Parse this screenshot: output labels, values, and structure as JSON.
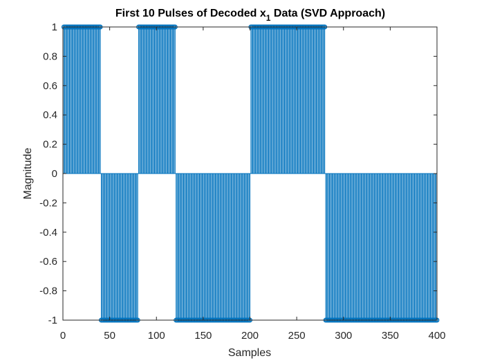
{
  "chart_data": {
    "type": "stem",
    "title": {
      "prefix": "First 10 Pulses of Decoded x",
      "subscript": "1",
      "suffix": " Data (SVD Approach)"
    },
    "xlabel": "Samples",
    "ylabel": "Magnitude",
    "xlim": [
      0,
      400
    ],
    "ylim": [
      -1,
      1
    ],
    "xticks": [
      0,
      50,
      100,
      150,
      200,
      250,
      300,
      350,
      400
    ],
    "yticks": [
      -1,
      -0.8,
      -0.6,
      -0.4,
      -0.2,
      0,
      0.2,
      0.4,
      0.6,
      0.8,
      1
    ],
    "xtick_labels": [
      "0",
      "50",
      "100",
      "150",
      "200",
      "250",
      "300",
      "350",
      "400"
    ],
    "ytick_labels": [
      "-1",
      "-0.8",
      "-0.6",
      "-0.4",
      "-0.2",
      "0",
      "0.2",
      "0.4",
      "0.6",
      "0.8",
      "1"
    ],
    "grid": false,
    "box": true,
    "color": "#0072BD",
    "marker": "circle-open",
    "samples_per_pulse": 40,
    "pulses": [
      1,
      -1,
      1,
      -1,
      -1,
      1,
      1,
      -1,
      -1,
      -1
    ],
    "series": [
      {
        "x_start": 1,
        "x_end": 400,
        "description_values": "each sample equals the amplitude of its pulse"
      }
    ]
  }
}
